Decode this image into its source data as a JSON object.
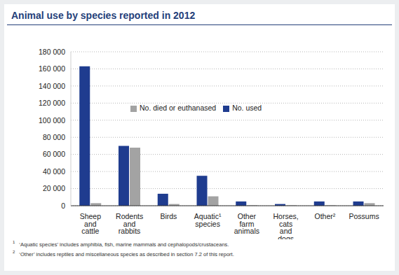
{
  "chart_data": {
    "type": "bar",
    "title": "Animal use by species reported in 2012",
    "categories": [
      "Sheep and cattle",
      "Rodents and rabbits",
      "Birds",
      "Aquatic¹ species",
      "Other farm animals",
      "Horses, cats and dogs",
      "Other²",
      "Possums"
    ],
    "series": [
      {
        "name": "No. used",
        "color": "#1f3c8f",
        "values": [
          163000,
          70000,
          14000,
          35000,
          5000,
          2000,
          5000,
          5000
        ]
      },
      {
        "name": "No. died or euthanased",
        "color": "#a3a3a3",
        "values": [
          3000,
          68000,
          2000,
          11000,
          500,
          500,
          500,
          3000
        ]
      }
    ],
    "ylim": [
      0,
      180000
    ],
    "yticks": [
      0,
      {
        "value": 20000,
        "label": "20 000"
      },
      {
        "value": 40000,
        "label": "40 000"
      },
      {
        "value": 60000,
        "label": "60 000"
      },
      {
        "value": 80000,
        "label": "80 000"
      },
      {
        "value": 100000,
        "label": "100 000"
      },
      {
        "value": 120000,
        "label": "120 000"
      },
      {
        "value": 140000,
        "label": "140 000"
      },
      {
        "value": 160000,
        "label": "160 000"
      },
      {
        "value": 180000,
        "label": "180 000"
      }
    ],
    "grid": true,
    "legend": "top left",
    "footnotes": [
      {
        "mark": "1",
        "text": "‘Aquatic species’ includes amphibia, fish, marine mammals and cephalopods/crustaceans."
      },
      {
        "mark": "2",
        "text": "‘Other’ includes reptiles and miscellaneous species as described in section 7.2 of this report."
      }
    ]
  }
}
